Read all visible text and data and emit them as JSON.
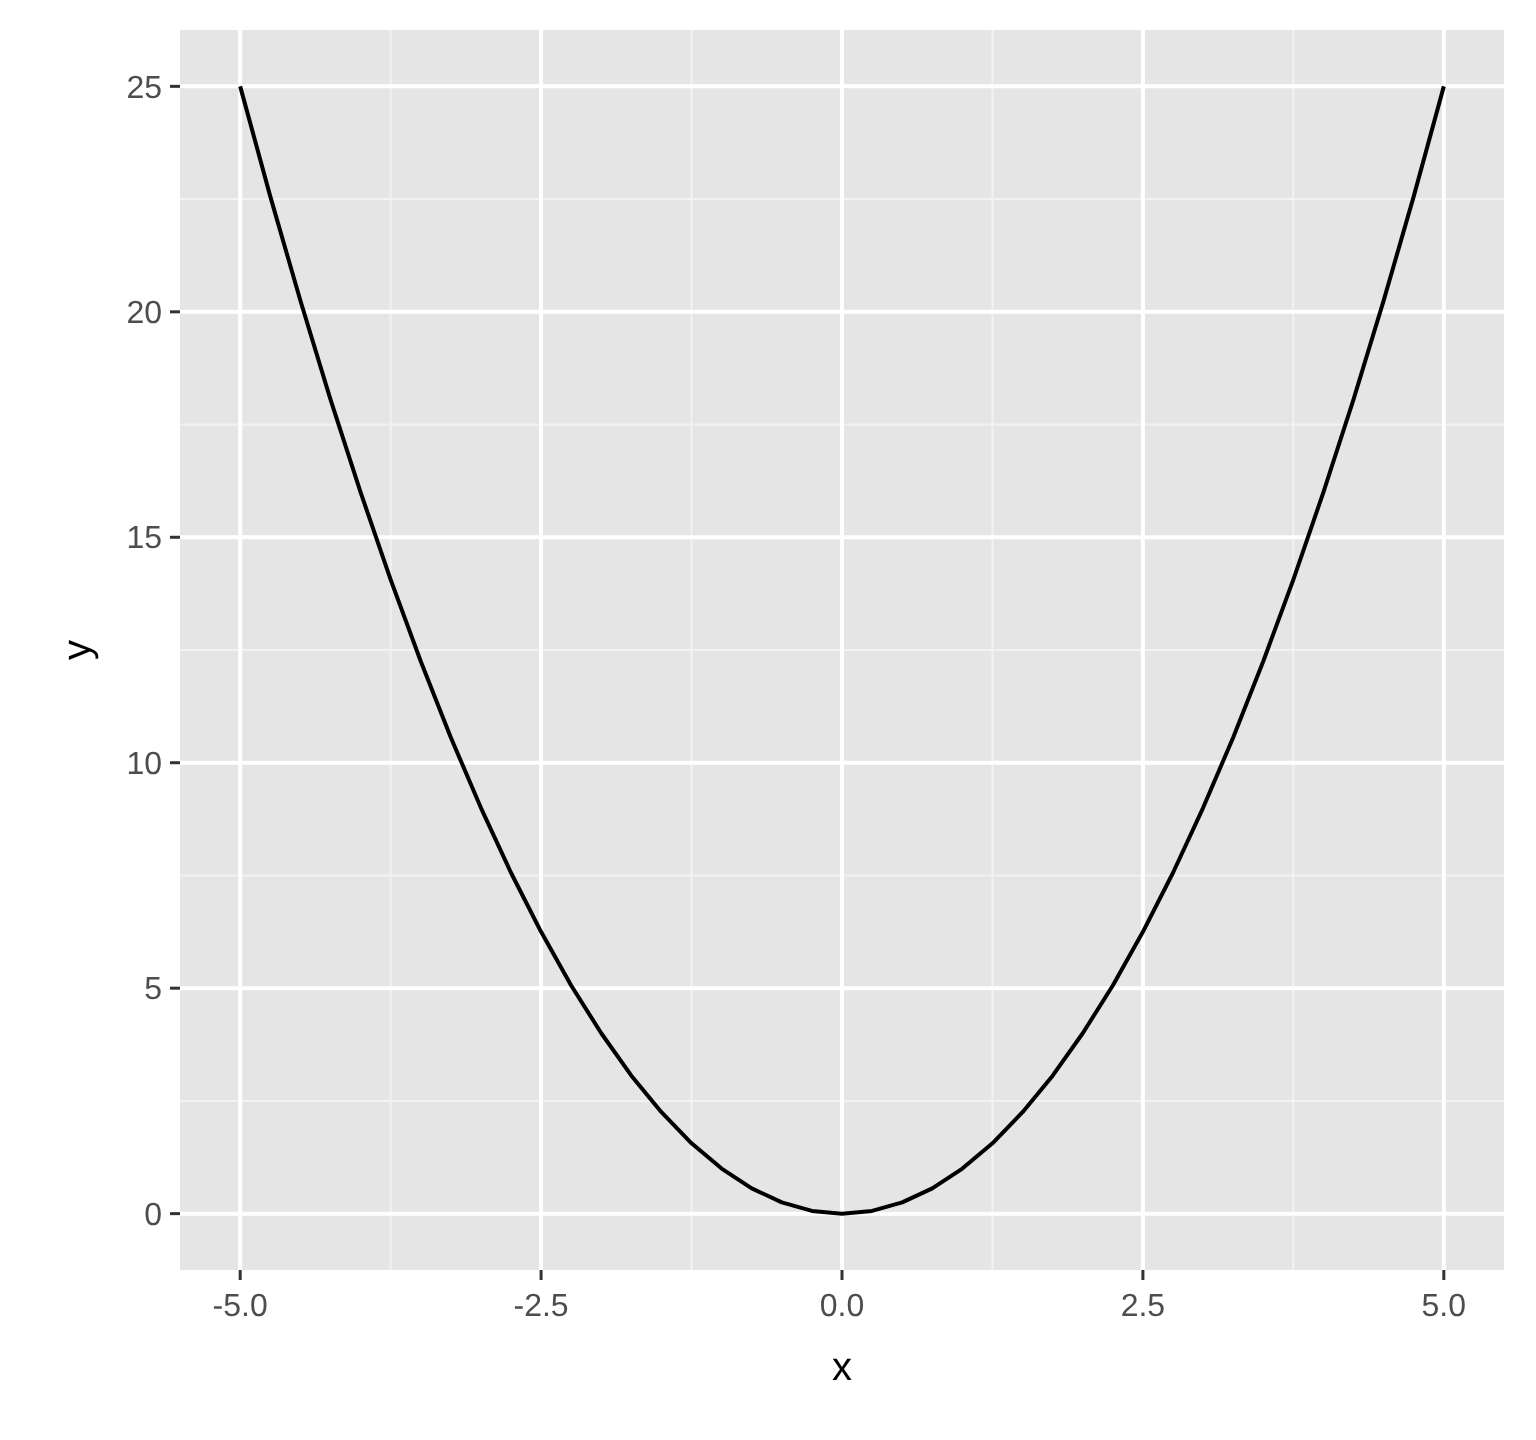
{
  "chart_data": {
    "type": "line",
    "xlabel": "x",
    "ylabel": "y",
    "x": [
      -5,
      -4.75,
      -4.5,
      -4.25,
      -4,
      -3.75,
      -3.5,
      -3.25,
      -3,
      -2.75,
      -2.5,
      -2.25,
      -2,
      -1.75,
      -1.5,
      -1.25,
      -1,
      -0.75,
      -0.5,
      -0.25,
      0,
      0.25,
      0.5,
      0.75,
      1,
      1.25,
      1.5,
      1.75,
      2,
      2.25,
      2.5,
      2.75,
      3,
      3.25,
      3.5,
      3.75,
      4,
      4.25,
      4.5,
      4.75,
      5
    ],
    "series": [
      {
        "color": "#000000",
        "values": [
          25,
          22.56,
          20.25,
          18.06,
          16,
          14.06,
          12.25,
          10.56,
          9,
          7.56,
          6.25,
          5.06,
          4,
          3.06,
          2.25,
          1.56,
          1,
          0.56,
          0.25,
          0.06,
          0,
          0.06,
          0.25,
          0.56,
          1,
          1.56,
          2.25,
          3.06,
          4,
          5.06,
          6.25,
          7.56,
          9,
          10.56,
          12.25,
          14.06,
          16,
          18.06,
          20.25,
          22.56,
          25
        ]
      }
    ],
    "xlim": [
      -5.5,
      5.5
    ],
    "ylim": [
      -1.25,
      26.25
    ],
    "xticks": [
      {
        "value": -5,
        "label": "-5.0"
      },
      {
        "value": -2.5,
        "label": "-2.5"
      },
      {
        "value": 0,
        "label": "0.0"
      },
      {
        "value": 2.5,
        "label": "2.5"
      },
      {
        "value": 5,
        "label": "5.0"
      }
    ],
    "yticks": [
      0,
      5,
      10,
      15,
      20,
      25
    ],
    "grid": true,
    "marker": "none",
    "line_style": "solid"
  }
}
